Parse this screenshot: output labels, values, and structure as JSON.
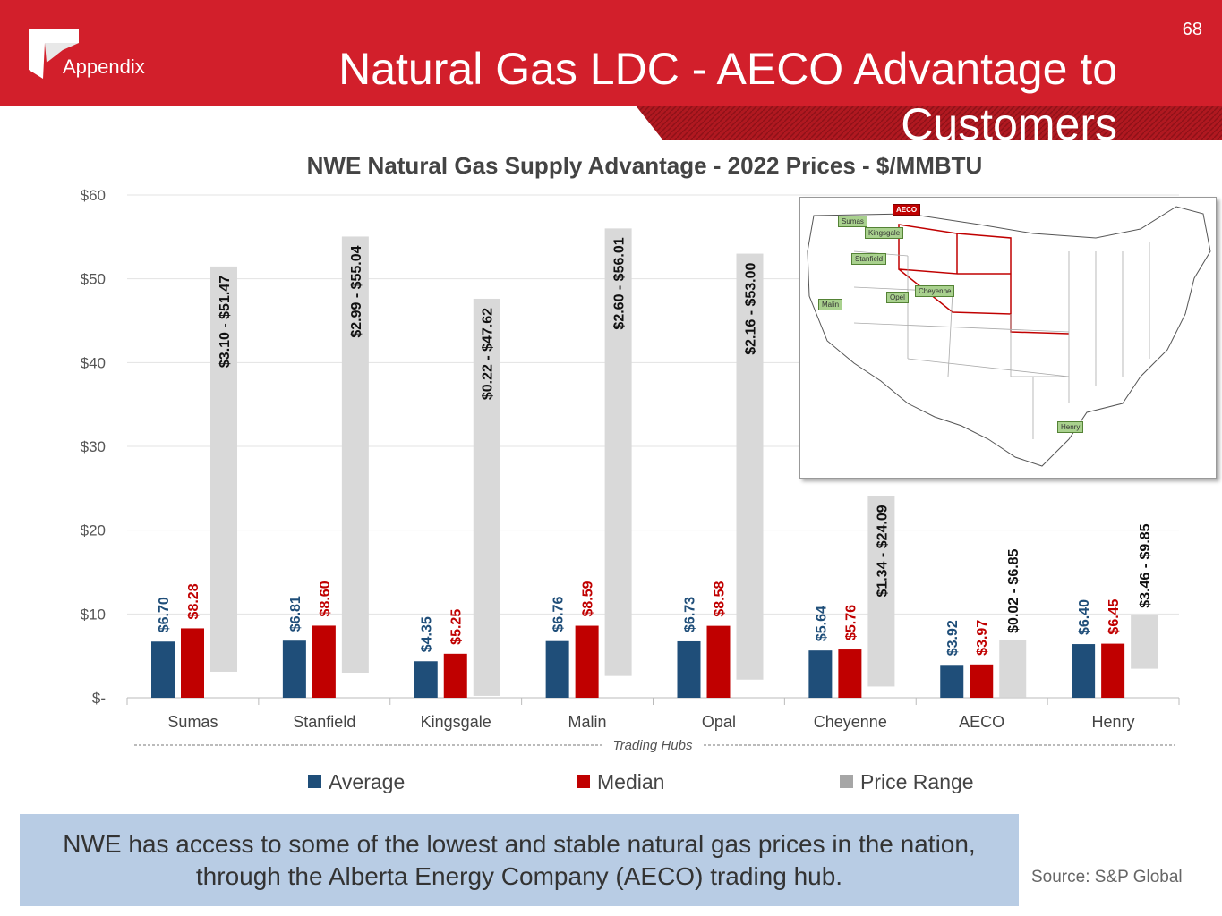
{
  "header": {
    "section": "Appendix",
    "page_number": "68",
    "title": "Natural Gas LDC - AECO Advantage to Customers"
  },
  "chart_data": {
    "type": "bar",
    "title": "NWE Natural Gas Supply Advantage - 2022 Prices - $/MMBTU",
    "xlabel": "Trading Hubs",
    "categories": [
      "Sumas",
      "Stanfield",
      "Kingsgale",
      "Malin",
      "Opal",
      "Cheyenne",
      "AECO",
      "Henry"
    ],
    "y_ticks": [
      "$-",
      "$10",
      "$20",
      "$30",
      "$40",
      "$50",
      "$60"
    ],
    "ylim": [
      0,
      60
    ],
    "grid": true,
    "legend_position": "bottom",
    "series": [
      {
        "name": "Average",
        "color": "#1f4e79",
        "values": [
          6.7,
          6.81,
          4.35,
          6.76,
          6.73,
          5.64,
          3.92,
          6.4
        ],
        "labels": [
          "$6.70",
          "$6.81",
          "$4.35",
          "$6.76",
          "$6.73",
          "$5.64",
          "$3.92",
          "$6.40"
        ]
      },
      {
        "name": "Median",
        "color": "#c00000",
        "values": [
          8.28,
          8.6,
          5.25,
          8.59,
          8.58,
          5.76,
          3.97,
          6.45
        ],
        "labels": [
          "$8.28",
          "$8.60",
          "$5.25",
          "$8.59",
          "$8.58",
          "$5.76",
          "$3.97",
          "$6.45"
        ]
      },
      {
        "name": "Price Range",
        "color": "#d9d9d9",
        "ranges": [
          [
            3.1,
            51.47
          ],
          [
            2.99,
            55.04
          ],
          [
            0.22,
            47.62
          ],
          [
            2.6,
            56.01
          ],
          [
            2.16,
            53.0
          ],
          [
            1.34,
            24.09
          ],
          [
            0.02,
            6.85
          ],
          [
            3.46,
            9.85
          ]
        ],
        "labels": [
          "$3.10 - $51.47",
          "$2.99 - $55.04",
          "$0.22 - $47.62",
          "$2.60 - $56.01",
          "$2.16 - $53.00",
          "$1.34 - $24.09",
          "$0.02 - $6.85",
          "$3.46 - $9.85"
        ]
      }
    ]
  },
  "map": {
    "hubs": [
      "Sumas",
      "Kingsgale",
      "Stanfield",
      "Malin",
      "Opel",
      "Cheyenne",
      "Henry"
    ],
    "highlight": "AECO"
  },
  "callout": "NWE has access to some of the lowest and stable natural gas prices in the nation, through the Alberta Energy Company (AECO) trading hub.",
  "source": "Source:  S&P Global"
}
